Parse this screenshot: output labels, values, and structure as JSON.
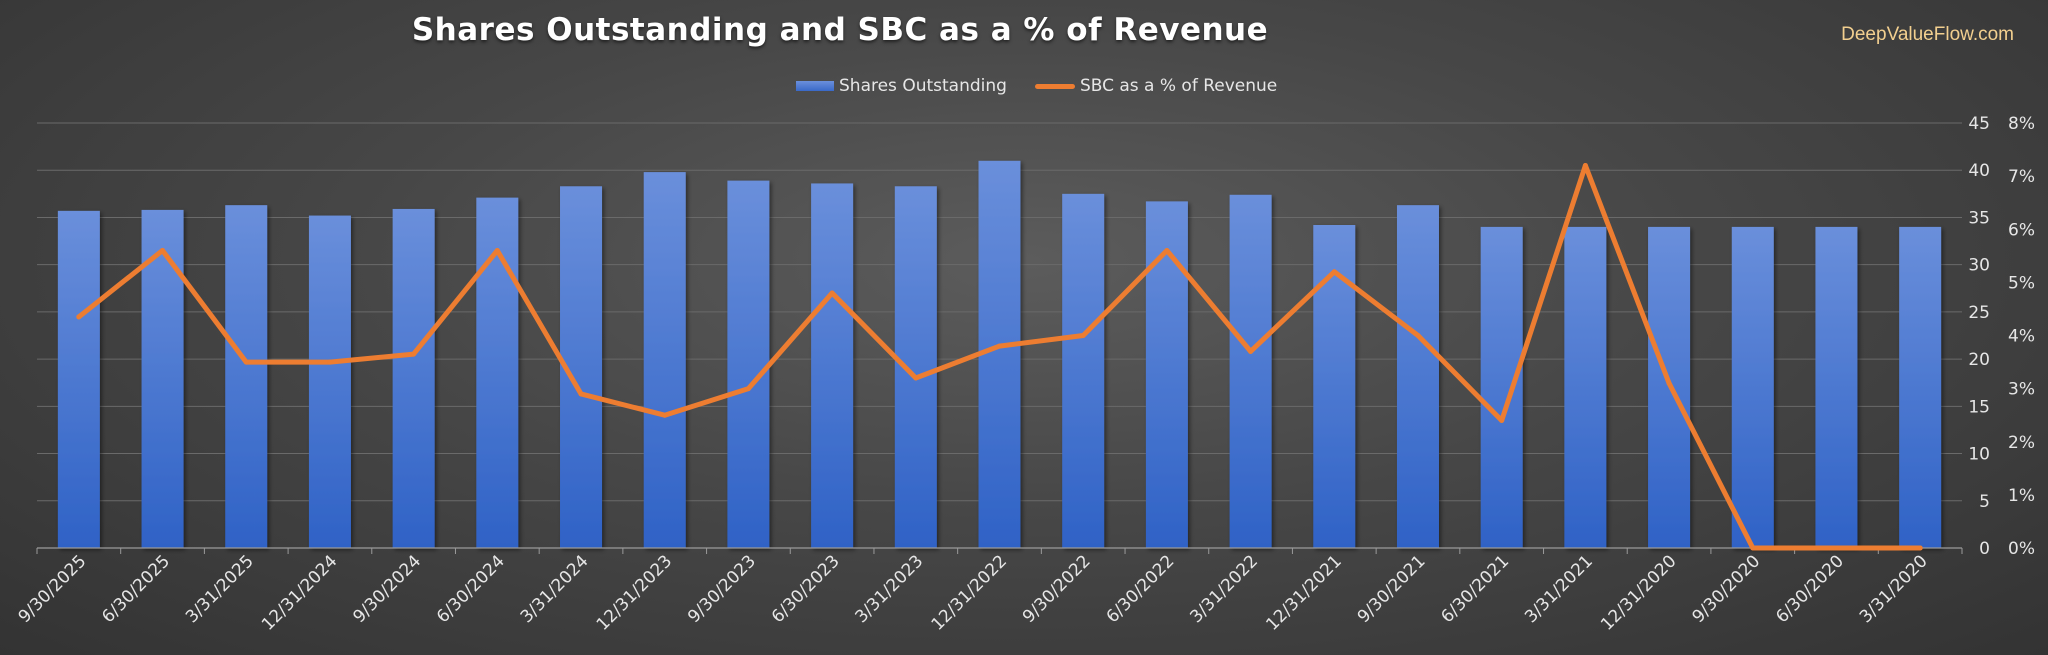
{
  "title": "Shares Outstanding and SBC as a % of Revenue",
  "watermark": "DeepValueFlow.com",
  "legend": {
    "bar_label": "Shares Outstanding",
    "line_label": "SBC as a % of Revenue"
  },
  "colors": {
    "bar": "#4472c4",
    "line": "#ed7d31",
    "text": "#e6e6e6",
    "grid": "#6a6a6a",
    "watermark": "#f2cf8f"
  },
  "chart_data": {
    "type": "bar",
    "categories": [
      "9/30/2025",
      "6/30/2025",
      "3/31/2025",
      "12/31/2024",
      "9/30/2024",
      "6/30/2024",
      "3/31/2024",
      "12/31/2023",
      "9/30/2023",
      "6/30/2023",
      "3/31/2023",
      "12/31/2022",
      "9/30/2022",
      "6/30/2022",
      "3/31/2022",
      "12/31/2021",
      "9/30/2021",
      "6/30/2021",
      "3/31/2021",
      "12/31/2020",
      "9/30/2020",
      "6/30/2020",
      "3/31/2020"
    ],
    "series": [
      {
        "name": "Shares Outstanding",
        "type": "bar",
        "axis": "left",
        "values": [
          35.7,
          35.8,
          36.3,
          35.2,
          35.9,
          37.1,
          38.3,
          39.8,
          38.9,
          38.6,
          38.3,
          41.0,
          37.5,
          36.7,
          37.4,
          34.2,
          36.3,
          34.0,
          34.0,
          34.0,
          34.0,
          34.0,
          34.0
        ]
      },
      {
        "name": "SBC as a % of Revenue",
        "type": "line",
        "axis": "right",
        "values": [
          4.35,
          5.6,
          3.5,
          3.5,
          3.65,
          5.6,
          2.9,
          2.5,
          3.0,
          4.8,
          3.2,
          3.8,
          4.0,
          5.6,
          3.7,
          5.2,
          4.0,
          2.4,
          7.2,
          3.1,
          0.0,
          0.0,
          0.0
        ]
      }
    ],
    "y_left": {
      "ticks": [
        0,
        5,
        10,
        15,
        20,
        25,
        30,
        35,
        40,
        45
      ],
      "tick_labels": [
        "0",
        "5",
        "10",
        "15",
        "20",
        "25",
        "30",
        "35",
        "40",
        "45"
      ],
      "ylim": [
        0,
        45
      ]
    },
    "y_right": {
      "ticks": [
        0,
        1,
        2,
        3,
        4,
        5,
        6,
        7,
        8
      ],
      "tick_labels": [
        "0%",
        "1%",
        "2%",
        "3%",
        "4%",
        "5%",
        "6%",
        "7%",
        "8%"
      ],
      "ylim": [
        0,
        8
      ]
    },
    "xlabel": "",
    "grid": true,
    "legend_position": "top-center"
  }
}
